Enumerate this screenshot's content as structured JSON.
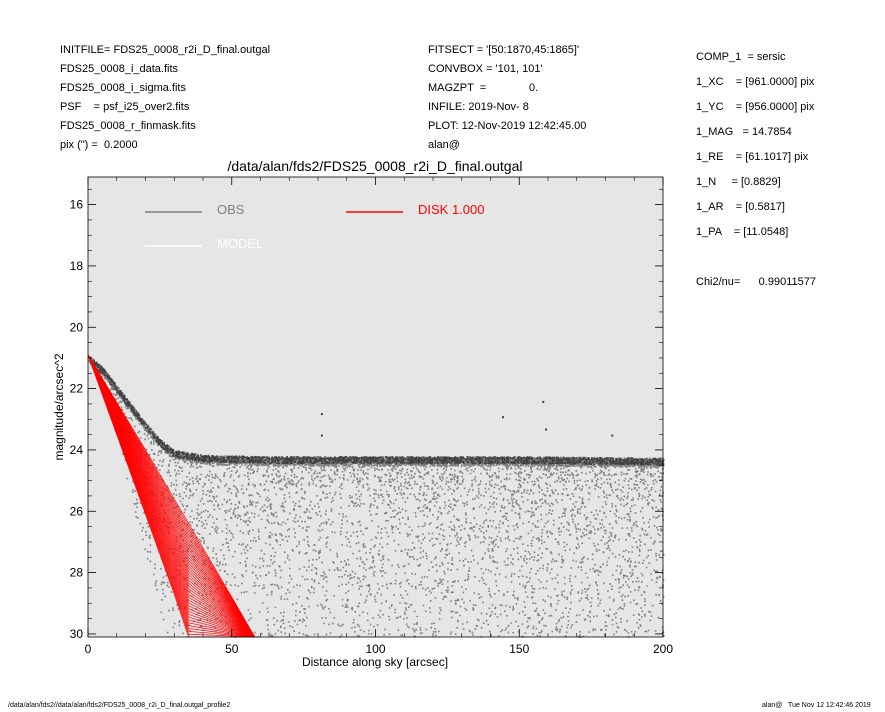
{
  "header": {
    "left": [
      "INITFILE= FDS25_0008_r2i_D_final.outgal",
      "FDS25_0008_i_data.fits",
      "FDS25_0008_i_sigma.fits",
      "PSF    = psf_i25_over2.fits",
      "FDS25_0008_r_finmask.fits",
      "pix (\") =  0.2000"
    ],
    "middle": [
      "FITSECT = '[50:1870,45:1865]'",
      "CONVBOX = '101, 101'",
      "MAGZPT  =              0.",
      "INFILE: 2019-Nov- 8",
      "PLOT: 12-Nov-2019 12:42:45.00",
      "alan@"
    ],
    "right": [
      "COMP_1  = sersic",
      "1_XC    = [961.0000] pix",
      "1_YC    = [956.0000] pix",
      "1_MAG   = 14.7854",
      "1_RE    = [61.1017] pix",
      "1_N     = [0.8829]",
      "1_AR    = [0.5817]",
      "1_PA    = [11.0548]"
    ],
    "chi2": "Chi2/nu=      0.99011577"
  },
  "footer": {
    "left": "/data/alan/fds2//data/alan/fds2/FDS25_0008_r2i_D_final.outgal_profile2",
    "right": "alan@   Tue Nov 12 12:42:46 2019"
  },
  "chart_data": {
    "type": "scatter",
    "title": "/data/alan/fds2/FDS25_0008_r2i_D_final.outgal",
    "xlabel": "Distance along sky [arcsec]",
    "ylabel": "magnitude/arcsec^2",
    "xlim": [
      0,
      200
    ],
    "ylim": [
      30.1,
      15.1
    ],
    "y_inverted": true,
    "xticks": [
      0,
      50,
      100,
      150,
      200
    ],
    "yticks": [
      16,
      18,
      20,
      22,
      24,
      26,
      28,
      30
    ],
    "background": "#e6e6e6",
    "legend_placement": "top-left",
    "series": [
      {
        "name": "OBS",
        "color": "#808080",
        "mode": "dense point cloud",
        "upper_envelope": [
          [
            0,
            20.9
          ],
          [
            5,
            21.3
          ],
          [
            10,
            21.9
          ],
          [
            15,
            22.5
          ],
          [
            20,
            23.1
          ],
          [
            25,
            23.65
          ],
          [
            30,
            24.0
          ],
          [
            40,
            24.15
          ],
          [
            60,
            24.2
          ],
          [
            100,
            24.2
          ],
          [
            150,
            24.2
          ],
          [
            200,
            24.25
          ]
        ],
        "lower_envelope": [
          [
            0,
            21.0
          ],
          [
            5,
            22.0
          ],
          [
            10,
            23.6
          ],
          [
            15,
            25.6
          ],
          [
            20,
            27.6
          ],
          [
            25,
            29.4
          ],
          [
            28,
            30.1
          ],
          [
            200,
            30.1
          ]
        ],
        "max_upper_spread": [
          [
            0,
            0.0
          ],
          [
            40,
            0.25
          ],
          [
            200,
            0.25
          ]
        ]
      },
      {
        "name": "MODEL",
        "color": "#ffffff",
        "mode": "line"
      },
      {
        "name": "DISK  1.000",
        "color": "#ff0000",
        "mode": "fan",
        "upper_envelope": [
          [
            0,
            20.9
          ],
          [
            10,
            22.45
          ],
          [
            20,
            24.0
          ],
          [
            30,
            25.6
          ],
          [
            40,
            27.2
          ],
          [
            50,
            28.8
          ],
          [
            58,
            30.1
          ]
        ],
        "lower_envelope": [
          [
            0,
            20.9
          ],
          [
            10,
            23.5
          ],
          [
            20,
            26.1
          ],
          [
            30,
            28.7
          ],
          [
            35,
            30.1
          ]
        ]
      }
    ],
    "outliers": [
      [
        81,
        22.8
      ],
      [
        81,
        23.5
      ],
      [
        144,
        22.9
      ],
      [
        158,
        22.4
      ],
      [
        159,
        23.3
      ],
      [
        182,
        23.5
      ]
    ]
  }
}
